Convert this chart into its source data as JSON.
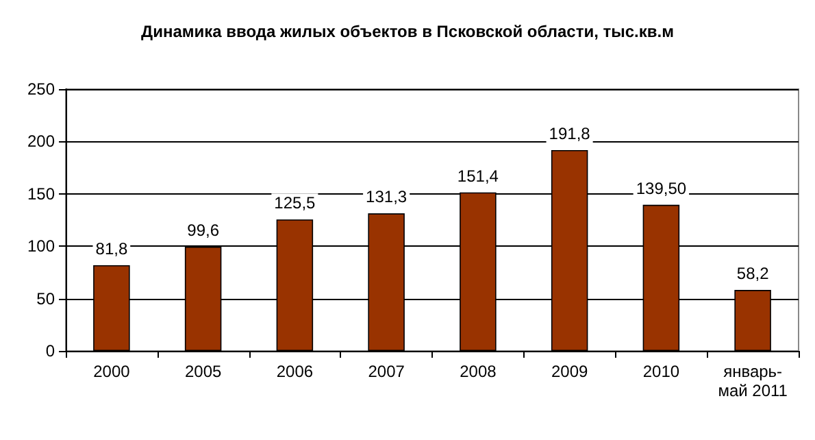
{
  "chart_data": {
    "type": "bar",
    "title": "Динамика ввода жилых объектов в Псковской области, тыс.кв.м",
    "categories": [
      "2000",
      "2005",
      "2006",
      "2007",
      "2008",
      "2009",
      "2010",
      "январь-май 2011"
    ],
    "values": [
      81.8,
      99.6,
      125.5,
      131.3,
      151.4,
      191.8,
      139.5,
      58.2
    ],
    "value_labels": [
      "81,8",
      "99,6",
      "125,5",
      "131,3",
      "151,4",
      "191,8",
      "139,50",
      "58,2"
    ],
    "color": "#993300",
    "ylim": [
      0,
      250
    ],
    "yticks": [
      0,
      50,
      100,
      150,
      200,
      250
    ],
    "grid": "y"
  }
}
